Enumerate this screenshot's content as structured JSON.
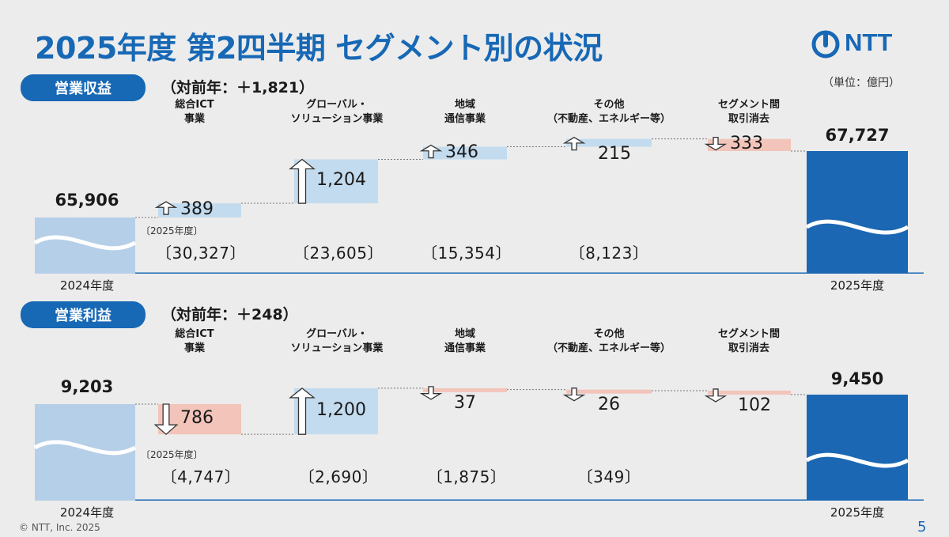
{
  "title": "2025年度 第2四半期 セグメント別の状況",
  "logo": {
    "text": "NTT",
    "icon": "ntt-logo-icon"
  },
  "unit_label": "（単位：億円）",
  "copyright": "© NTT, Inc.  2025",
  "page_number": "5",
  "colors": {
    "brand": "#1768b5",
    "increase": "#c3dbee",
    "decrease": "#f2c4ba",
    "start_bar": "#b6cfe8",
    "end_bar": "#1b67b3"
  },
  "chart_data": [
    {
      "type": "waterfall",
      "section_label": "営業収益",
      "delta_label": "（対前年：＋1,821）",
      "start": {
        "label": "2024年度",
        "value": 65906,
        "display": "65,906"
      },
      "end": {
        "label": "2025年度",
        "value": 67727,
        "display": "67,727"
      },
      "steps": [
        {
          "name": [
            "総合ICT",
            "事業"
          ],
          "value": 389,
          "display": "389",
          "direction": "up",
          "fy2025": "〔30,327〕"
        },
        {
          "name": [
            "グローバル・",
            "ソリューション事業"
          ],
          "value": 1204,
          "display": "1,204",
          "direction": "up",
          "fy2025": "〔23,605〕"
        },
        {
          "name": [
            "地域",
            "通信事業"
          ],
          "value": 346,
          "display": "346",
          "direction": "up",
          "fy2025": "〔15,354〕"
        },
        {
          "name": [
            "その他",
            "（不動産、エネルギー等）"
          ],
          "value": 215,
          "display": "215",
          "direction": "up",
          "fy2025": "〔8,123〕"
        },
        {
          "name": [
            "セグメント間",
            "取引消去"
          ],
          "value": -333,
          "display": "333",
          "direction": "down",
          "fy2025": ""
        }
      ],
      "fy_note": "〔2025年度〕"
    },
    {
      "type": "waterfall",
      "section_label": "営業利益",
      "delta_label": "（対前年：＋248）",
      "start": {
        "label": "2024年度",
        "value": 9203,
        "display": "9,203"
      },
      "end": {
        "label": "2025年度",
        "value": 9450,
        "display": "9,450"
      },
      "steps": [
        {
          "name": [
            "総合ICT",
            "事業"
          ],
          "value": -786,
          "display": "786",
          "direction": "down",
          "fy2025": "〔4,747〕"
        },
        {
          "name": [
            "グローバル・",
            "ソリューション事業"
          ],
          "value": 1200,
          "display": "1,200",
          "direction": "up",
          "fy2025": "〔2,690〕"
        },
        {
          "name": [
            "地域",
            "通信事業"
          ],
          "value": -37,
          "display": "37",
          "direction": "down",
          "fy2025": "〔1,875〕"
        },
        {
          "name": [
            "その他",
            "（不動産、エネルギー等）"
          ],
          "value": -26,
          "display": "26",
          "direction": "down",
          "fy2025": "〔349〕"
        },
        {
          "name": [
            "セグメント間",
            "取引消去"
          ],
          "value": -102,
          "display": "102",
          "direction": "down",
          "fy2025": ""
        }
      ],
      "fy_note": "〔2025年度〕"
    }
  ]
}
